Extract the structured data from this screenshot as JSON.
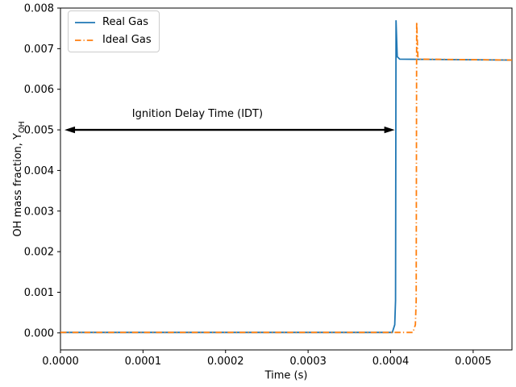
{
  "chart_data": {
    "type": "line",
    "title": "",
    "xlabel": "Time (s)",
    "ylabel": {
      "prefix": "OH mass fraction, Y",
      "sub": "OH"
    },
    "grid": false,
    "axis_color": "#000000",
    "background_color": "#ffffff",
    "xlim": [
      0,
      0.000547
    ],
    "ylim": [
      -0.00042,
      0.008
    ],
    "xticks": {
      "values": [
        0,
        0.0001,
        0.0002,
        0.0003,
        0.0004,
        0.0005
      ],
      "labels": [
        "0.0000",
        "0.0001",
        "0.0002",
        "0.0003",
        "0.0004",
        "0.0005"
      ]
    },
    "yticks": {
      "values": [
        0,
        0.001,
        0.002,
        0.003,
        0.004,
        0.005,
        0.006,
        0.007,
        0.008
      ],
      "labels": [
        "0.000",
        "0.001",
        "0.002",
        "0.003",
        "0.004",
        "0.005",
        "0.006",
        "0.007",
        "0.008"
      ]
    },
    "legend": {
      "position": "upper left"
    },
    "series": [
      {
        "name": "Real Gas",
        "color": "#1f77b4",
        "style": "solid",
        "dash": "",
        "ignition_delay_s": 0.000407,
        "peak_Y_OH": 0.0077,
        "equilibrium_Y_OH": 0.00673,
        "points": [
          [
            0,
            1e-05
          ],
          [
            0.000402,
            1e-05
          ],
          [
            0.000405,
            0.0002
          ],
          [
            0.000406,
            0.0008
          ],
          [
            0.0004065,
            0.0077
          ],
          [
            0.000408,
            0.0068
          ],
          [
            0.000411,
            0.00674
          ],
          [
            0.000547,
            0.00672
          ]
        ]
      },
      {
        "name": "Ideal Gas",
        "color": "#ff7f0e",
        "style": "dashdot",
        "dash": "7.5,3,1.3,3",
        "ignition_delay_s": 0.000432,
        "peak_Y_OH": 0.00765,
        "equilibrium_Y_OH": 0.00673,
        "points": [
          [
            0,
            1e-05
          ],
          [
            0.000427,
            1e-05
          ],
          [
            0.00043,
            0.0002
          ],
          [
            0.000431,
            0.0008
          ],
          [
            0.0004315,
            0.00765
          ],
          [
            0.000433,
            0.0068
          ],
          [
            0.000436,
            0.00674
          ],
          [
            0.000547,
            0.00672
          ]
        ]
      }
    ],
    "annotation": {
      "text": "Ignition Delay Time (IDT)",
      "arrow_y": 0.005,
      "arrow_x_start": 4.9e-06,
      "arrow_x_end": 0.000405,
      "text_x": 0.000166,
      "text_y": 0.00523,
      "arrow_color": "#000000"
    }
  }
}
